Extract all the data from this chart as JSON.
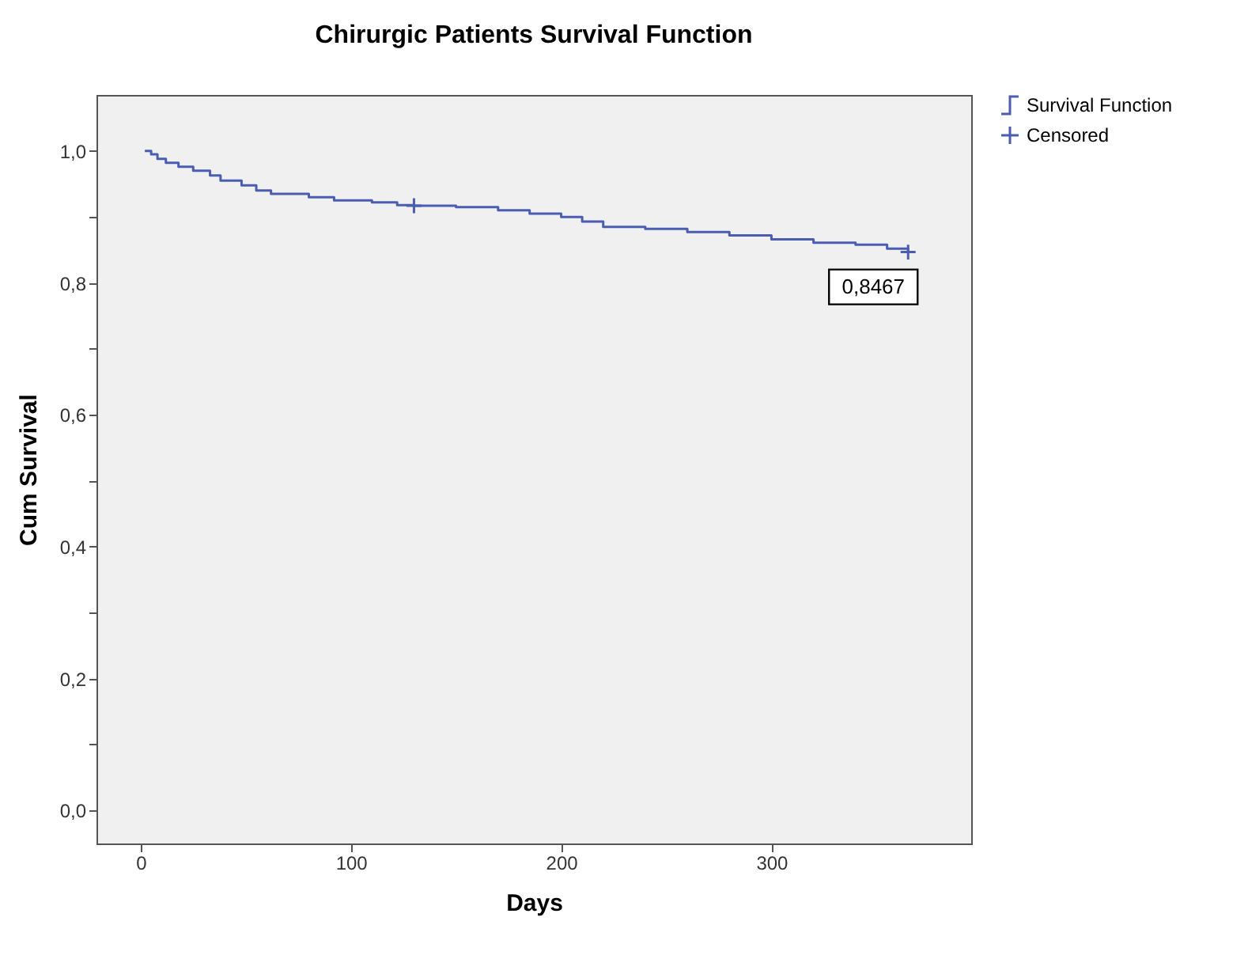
{
  "chart_data": {
    "type": "step",
    "title": "Chirurgic Patients Survival Function",
    "xlabel": "Days",
    "ylabel": "Cum Survival",
    "series": [
      {
        "name": "Survival Function",
        "color": "#4a5db0",
        "marker": "none",
        "x": [
          2,
          5,
          8,
          12,
          18,
          25,
          33,
          38,
          48,
          55,
          62,
          80,
          92,
          110,
          122,
          130,
          150,
          170,
          185,
          200,
          210,
          220,
          240,
          260,
          280,
          300,
          320,
          340,
          355,
          365
        ],
        "values": [
          1.0,
          0.995,
          0.988,
          0.982,
          0.976,
          0.97,
          0.963,
          0.955,
          0.948,
          0.94,
          0.935,
          0.93,
          0.925,
          0.922,
          0.918,
          0.917,
          0.915,
          0.91,
          0.905,
          0.9,
          0.893,
          0.885,
          0.882,
          0.877,
          0.872,
          0.866,
          0.861,
          0.858,
          0.852,
          0.8467
        ]
      },
      {
        "name": "Censored",
        "color": "#4a5db0",
        "type": "scatter",
        "marker": "cross",
        "x": [
          130,
          365
        ],
        "values": [
          0.917,
          0.8467
        ]
      }
    ],
    "annotations": [
      {
        "text": "0,8467",
        "x": 365,
        "y": 0.8467
      }
    ],
    "xlim": [
      -21,
      395
    ],
    "ylim": [
      -0.05,
      1.085
    ],
    "xticks": [
      0,
      100,
      200,
      300
    ],
    "yticks": [
      {
        "value": 0,
        "label": "0,0"
      },
      {
        "value": 0.1,
        "label": null
      },
      {
        "value": 0.2,
        "label": "0,2"
      },
      {
        "value": 0.3,
        "label": null
      },
      {
        "value": 0.4,
        "label": "0,4"
      },
      {
        "value": 0.5,
        "label": null
      },
      {
        "value": 0.6,
        "label": "0,6"
      },
      {
        "value": 0.7,
        "label": null
      },
      {
        "value": 0.8,
        "label": "0,8"
      },
      {
        "value": 0.9,
        "label": null
      },
      {
        "value": 1,
        "label": "1,0"
      }
    ],
    "grid": false,
    "legend": "top right"
  }
}
